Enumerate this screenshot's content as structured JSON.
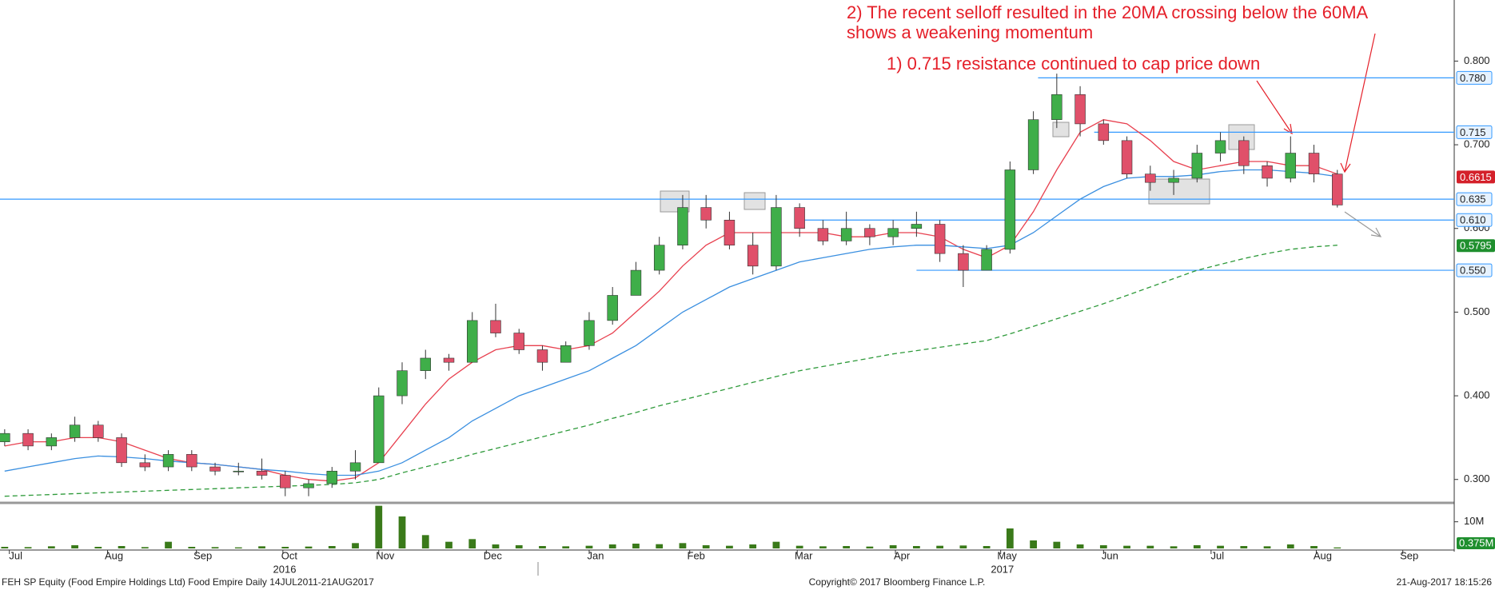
{
  "chart_data": {
    "type": "candlestick",
    "xlim": [
      -0.2,
      62
    ],
    "ylim": [
      0.273,
      0.873
    ],
    "yticks": [
      {
        "value": 0.3,
        "label": "0.300"
      },
      {
        "value": 0.4,
        "label": "0.400"
      },
      {
        "value": 0.5,
        "label": "0.500"
      },
      {
        "value": 0.6,
        "label": "0.600"
      },
      {
        "value": 0.7,
        "label": "0.700"
      },
      {
        "value": 0.8,
        "label": "0.800"
      }
    ],
    "xticks": [
      {
        "value": 0.2,
        "label": "Jul"
      },
      {
        "value": 4.4,
        "label": "Aug"
      },
      {
        "value": 8.2,
        "label": "Sep"
      },
      {
        "value": 11.9,
        "label": "Oct"
      },
      {
        "value": 16.0,
        "label": "Nov"
      },
      {
        "value": 20.6,
        "label": "Dec"
      },
      {
        "value": 25.0,
        "label": "Jan"
      },
      {
        "value": 29.3,
        "label": "Feb"
      },
      {
        "value": 33.9,
        "label": "Mar"
      },
      {
        "value": 38.1,
        "label": "Apr"
      },
      {
        "value": 42.6,
        "label": "May"
      },
      {
        "value": 47.0,
        "label": "Jun"
      },
      {
        "value": 51.6,
        "label": "Jul"
      },
      {
        "value": 56.1,
        "label": "Aug"
      },
      {
        "value": 59.8,
        "label": "Sep"
      }
    ],
    "years": [
      {
        "value": 11.7,
        "label": "2016"
      },
      {
        "value": 42.4,
        "label": "2017"
      }
    ],
    "up_color": "#3fae49",
    "down_color": "#e0506a",
    "open": [
      0.345,
      0.355,
      0.34,
      0.35,
      0.365,
      0.35,
      0.32,
      0.315,
      0.33,
      0.315,
      0.31,
      0.31,
      0.305,
      0.29,
      0.295,
      0.31,
      0.32,
      0.4,
      0.43,
      0.445,
      0.44,
      0.49,
      0.475,
      0.455,
      0.44,
      0.46,
      0.49,
      0.52,
      0.55,
      0.58,
      0.625,
      0.61,
      0.58,
      0.555,
      0.625,
      0.6,
      0.585,
      0.6,
      0.59,
      0.6,
      0.605,
      0.57,
      0.55,
      0.575,
      0.67,
      0.73,
      0.76,
      0.725,
      0.705,
      0.665,
      0.655,
      0.66,
      0.69,
      0.705,
      0.675,
      0.66,
      0.69,
      0.665
    ],
    "high": [
      0.36,
      0.36,
      0.355,
      0.375,
      0.37,
      0.355,
      0.33,
      0.335,
      0.335,
      0.32,
      0.32,
      0.325,
      0.31,
      0.3,
      0.315,
      0.335,
      0.41,
      0.44,
      0.455,
      0.45,
      0.5,
      0.51,
      0.48,
      0.46,
      0.465,
      0.5,
      0.53,
      0.56,
      0.59,
      0.64,
      0.64,
      0.62,
      0.595,
      0.64,
      0.63,
      0.61,
      0.62,
      0.605,
      0.61,
      0.62,
      0.61,
      0.58,
      0.58,
      0.68,
      0.74,
      0.785,
      0.77,
      0.73,
      0.71,
      0.675,
      0.67,
      0.7,
      0.715,
      0.71,
      0.68,
      0.71,
      0.7,
      0.67
    ],
    "low": [
      0.34,
      0.335,
      0.335,
      0.345,
      0.345,
      0.315,
      0.31,
      0.31,
      0.31,
      0.305,
      0.305,
      0.3,
      0.28,
      0.28,
      0.29,
      0.3,
      0.32,
      0.39,
      0.42,
      0.43,
      0.44,
      0.47,
      0.45,
      0.43,
      0.44,
      0.455,
      0.485,
      0.52,
      0.545,
      0.575,
      0.6,
      0.575,
      0.545,
      0.55,
      0.59,
      0.58,
      0.58,
      0.58,
      0.58,
      0.59,
      0.56,
      0.53,
      0.55,
      0.57,
      0.665,
      0.72,
      0.71,
      0.7,
      0.66,
      0.645,
      0.64,
      0.655,
      0.68,
      0.665,
      0.65,
      0.655,
      0.655,
      0.625
    ],
    "close": [
      0.355,
      0.34,
      0.35,
      0.365,
      0.35,
      0.32,
      0.315,
      0.33,
      0.315,
      0.31,
      0.31,
      0.305,
      0.29,
      0.295,
      0.31,
      0.32,
      0.4,
      0.43,
      0.445,
      0.44,
      0.49,
      0.475,
      0.455,
      0.44,
      0.46,
      0.49,
      0.52,
      0.55,
      0.58,
      0.625,
      0.61,
      0.58,
      0.555,
      0.625,
      0.6,
      0.585,
      0.6,
      0.59,
      0.6,
      0.605,
      0.57,
      0.55,
      0.575,
      0.67,
      0.73,
      0.76,
      0.725,
      0.705,
      0.665,
      0.655,
      0.66,
      0.69,
      0.705,
      0.675,
      0.66,
      0.69,
      0.665,
      0.628
    ],
    "ma": [
      {
        "color": "#e8404f",
        "dashed": false,
        "values": [
          0.34,
          0.345,
          0.345,
          0.35,
          0.35,
          0.345,
          0.335,
          0.325,
          0.32,
          0.318,
          0.315,
          0.312,
          0.305,
          0.3,
          0.298,
          0.302,
          0.32,
          0.355,
          0.39,
          0.42,
          0.44,
          0.455,
          0.46,
          0.46,
          0.455,
          0.46,
          0.475,
          0.5,
          0.525,
          0.555,
          0.58,
          0.595,
          0.595,
          0.595,
          0.595,
          0.595,
          0.59,
          0.59,
          0.595,
          0.595,
          0.59,
          0.575,
          0.565,
          0.58,
          0.62,
          0.67,
          0.715,
          0.73,
          0.725,
          0.705,
          0.68,
          0.67,
          0.675,
          0.68,
          0.68,
          0.675,
          0.675,
          0.665
        ]
      },
      {
        "color": "#3a8fe0",
        "dashed": false,
        "values": [
          0.31,
          0.315,
          0.32,
          0.325,
          0.328,
          0.327,
          0.325,
          0.322,
          0.32,
          0.318,
          0.315,
          0.312,
          0.31,
          0.307,
          0.305,
          0.305,
          0.31,
          0.32,
          0.335,
          0.35,
          0.37,
          0.385,
          0.4,
          0.41,
          0.42,
          0.43,
          0.445,
          0.46,
          0.48,
          0.5,
          0.515,
          0.53,
          0.54,
          0.55,
          0.56,
          0.565,
          0.57,
          0.575,
          0.578,
          0.58,
          0.58,
          0.578,
          0.576,
          0.58,
          0.595,
          0.615,
          0.635,
          0.65,
          0.66,
          0.662,
          0.662,
          0.664,
          0.668,
          0.67,
          0.67,
          0.668,
          0.666,
          0.662
        ]
      },
      {
        "color": "#2e9a3a",
        "dashed": true,
        "values": [
          0.28,
          0.281,
          0.282,
          0.283,
          0.284,
          0.285,
          0.286,
          0.287,
          0.288,
          0.289,
          0.29,
          0.291,
          0.292,
          0.293,
          0.294,
          0.296,
          0.3,
          0.308,
          0.315,
          0.322,
          0.33,
          0.337,
          0.344,
          0.351,
          0.358,
          0.365,
          0.373,
          0.38,
          0.388,
          0.395,
          0.402,
          0.409,
          0.416,
          0.423,
          0.43,
          0.435,
          0.44,
          0.445,
          0.45,
          0.454,
          0.458,
          0.462,
          0.466,
          0.474,
          0.483,
          0.492,
          0.501,
          0.51,
          0.52,
          0.53,
          0.54,
          0.55,
          0.557,
          0.564,
          0.57,
          0.575,
          0.578,
          0.58
        ]
      }
    ],
    "levels": [
      {
        "value": 0.78,
        "label": "0.780",
        "start": 44.2
      },
      {
        "value": 0.715,
        "label": "0.715",
        "start": 46.6
      },
      {
        "value": 0.635,
        "label": "0.635",
        "start": -0.2
      },
      {
        "value": 0.61,
        "label": "0.610",
        "start": 34
      },
      {
        "value": 0.55,
        "label": "0.550",
        "start": 39
      }
    ],
    "level_color": "#3399ff",
    "tags": [
      {
        "value": 0.6615,
        "label": "0.6615",
        "color": "#d4202a"
      },
      {
        "value": 0.5795,
        "label": "0.5795",
        "color": "#1f8f2e"
      }
    ],
    "volume": {
      "color": "#3a7a1a",
      "vlim": [
        0,
        15
      ],
      "vticks": [
        {
          "value": 10,
          "label": "10M"
        }
      ],
      "values": [
        0.6,
        0.5,
        0.8,
        1.2,
        0.6,
        0.9,
        0.5,
        2.5,
        0.6,
        0.5,
        0.4,
        0.8,
        0.6,
        0.7,
        0.9,
        2.0,
        16,
        12,
        5,
        2.5,
        3.5,
        1.5,
        1.2,
        0.9,
        0.8,
        1.0,
        1.5,
        1.8,
        1.6,
        2.0,
        1.2,
        1.0,
        1.5,
        2.5,
        1.0,
        0.8,
        0.9,
        0.7,
        1.2,
        0.9,
        1.0,
        1.1,
        0.9,
        7.5,
        3.0,
        2.5,
        1.5,
        1.2,
        1.0,
        1.0,
        0.8,
        1.2,
        1.0,
        0.9,
        0.8,
        1.5,
        0.9,
        0.375
      ],
      "last_label": "0.375M"
    },
    "annotations": [
      "2) The recent selloff resulted in the 20MA crossing below the 60MA",
      "shows a weakening momentum",
      "1) 0.715 resistance continued to cap price down"
    ],
    "footer": {
      "left": "FEH SP Equity (Food Empire Holdings Ltd) Food Empire  Daily 14JUL2011-21AUG2017",
      "center": "Copyright© 2017 Bloomberg Finance L.P.",
      "right": "21-Aug-2017 18:15:26"
    }
  }
}
